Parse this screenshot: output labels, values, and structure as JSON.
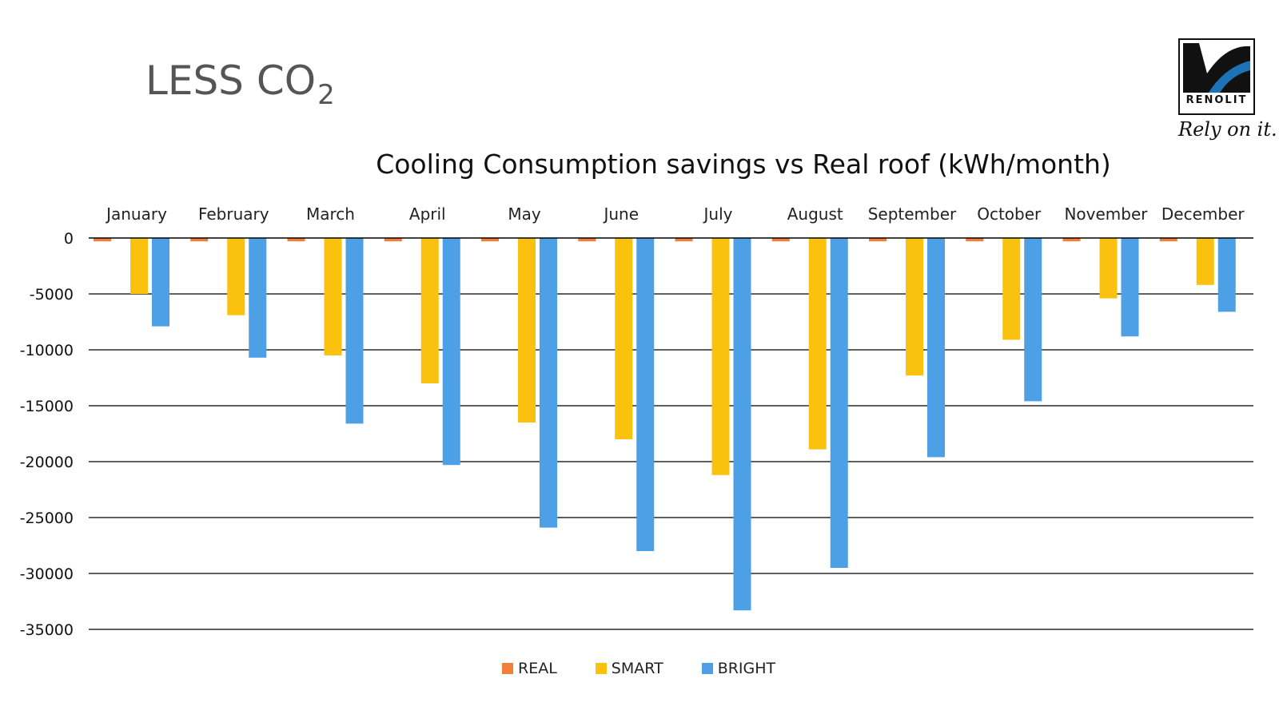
{
  "header": {
    "title_main": "LESS CO",
    "title_sub": "2"
  },
  "logo": {
    "brand": "RENOLIT",
    "tagline": "Rely on it."
  },
  "colors": {
    "real": "#f07f3a",
    "smart": "#fbc10f",
    "bright": "#4ea0e6",
    "grid": "#000000"
  },
  "chart_data": {
    "type": "bar",
    "title": "Cooling Consumption savings vs Real roof (kWh/month)",
    "xlabel": "",
    "ylabel": "",
    "ylim": [
      -35000,
      0
    ],
    "yticks": [
      0,
      -5000,
      -10000,
      -15000,
      -20000,
      -25000,
      -30000,
      -35000
    ],
    "grid": true,
    "legend_position": "bottom",
    "categories": [
      "January",
      "February",
      "March",
      "April",
      "May",
      "June",
      "July",
      "August",
      "September",
      "October",
      "November",
      "December"
    ],
    "series": [
      {
        "name": "REAL",
        "color_key": "real",
        "values": [
          -300,
          -300,
          -300,
          -300,
          -300,
          -300,
          -300,
          -300,
          -300,
          -300,
          -300,
          -300
        ]
      },
      {
        "name": "SMART",
        "color_key": "smart",
        "values": [
          -5000,
          -6900,
          -10500,
          -13000,
          -16500,
          -18000,
          -21200,
          -18900,
          -12300,
          -9100,
          -5400,
          -4200
        ]
      },
      {
        "name": "BRIGHT",
        "color_key": "bright",
        "values": [
          -7900,
          -10700,
          -16600,
          -20300,
          -25900,
          -28000,
          -33300,
          -29500,
          -19600,
          -14600,
          -8800,
          -6600
        ]
      }
    ]
  }
}
